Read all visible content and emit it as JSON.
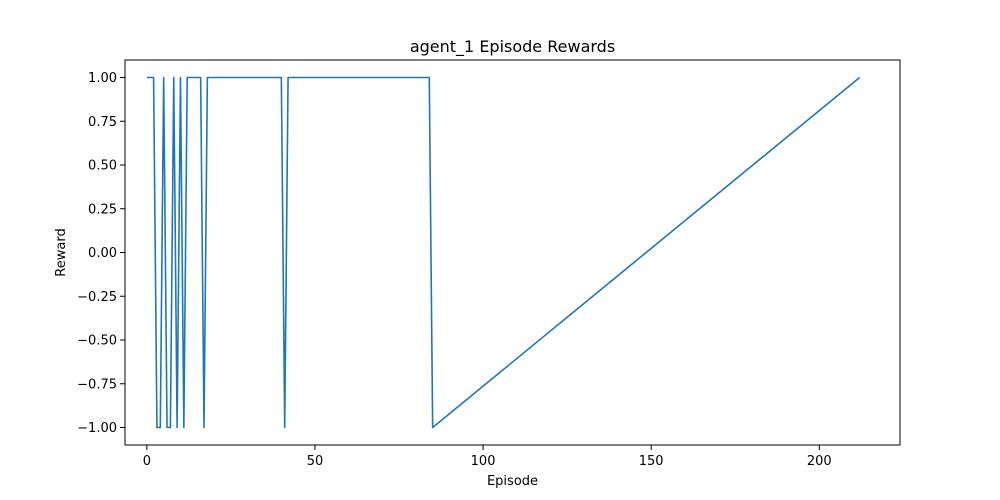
{
  "chart_data": {
    "type": "line",
    "title": "agent_1 Episode Rewards",
    "xlabel": "Episode",
    "ylabel": "Reward",
    "xlim": [
      -6.5,
      224
    ],
    "ylim": [
      -1.1,
      1.1
    ],
    "xticks": [
      0,
      50,
      100,
      150,
      200
    ],
    "xtick_labels": [
      "0",
      "50",
      "100",
      "150",
      "200"
    ],
    "yticks": [
      1.0,
      0.75,
      0.5,
      0.25,
      0.0,
      -0.25,
      -0.5,
      -0.75,
      -1.0
    ],
    "ytick_labels": [
      "1.00",
      "0.75",
      "0.50",
      "0.25",
      "0.00",
      "−0.25",
      "−0.50",
      "−0.75",
      "−1.00"
    ],
    "grid": false,
    "series": [
      {
        "name": "agent_1",
        "color": "#1f77b4",
        "x": [
          0,
          1,
          2,
          3,
          4,
          5,
          6,
          7,
          8,
          9,
          10,
          11,
          12,
          13,
          14,
          15,
          16,
          17,
          18,
          40,
          41,
          42,
          84,
          85,
          212
        ],
        "y": [
          1,
          1,
          1,
          -1,
          -1,
          1,
          -1,
          -1,
          1,
          -1,
          1,
          -1,
          1,
          1,
          1,
          1,
          1,
          -1,
          1,
          1,
          -1,
          1,
          1,
          -1,
          1
        ]
      }
    ]
  }
}
